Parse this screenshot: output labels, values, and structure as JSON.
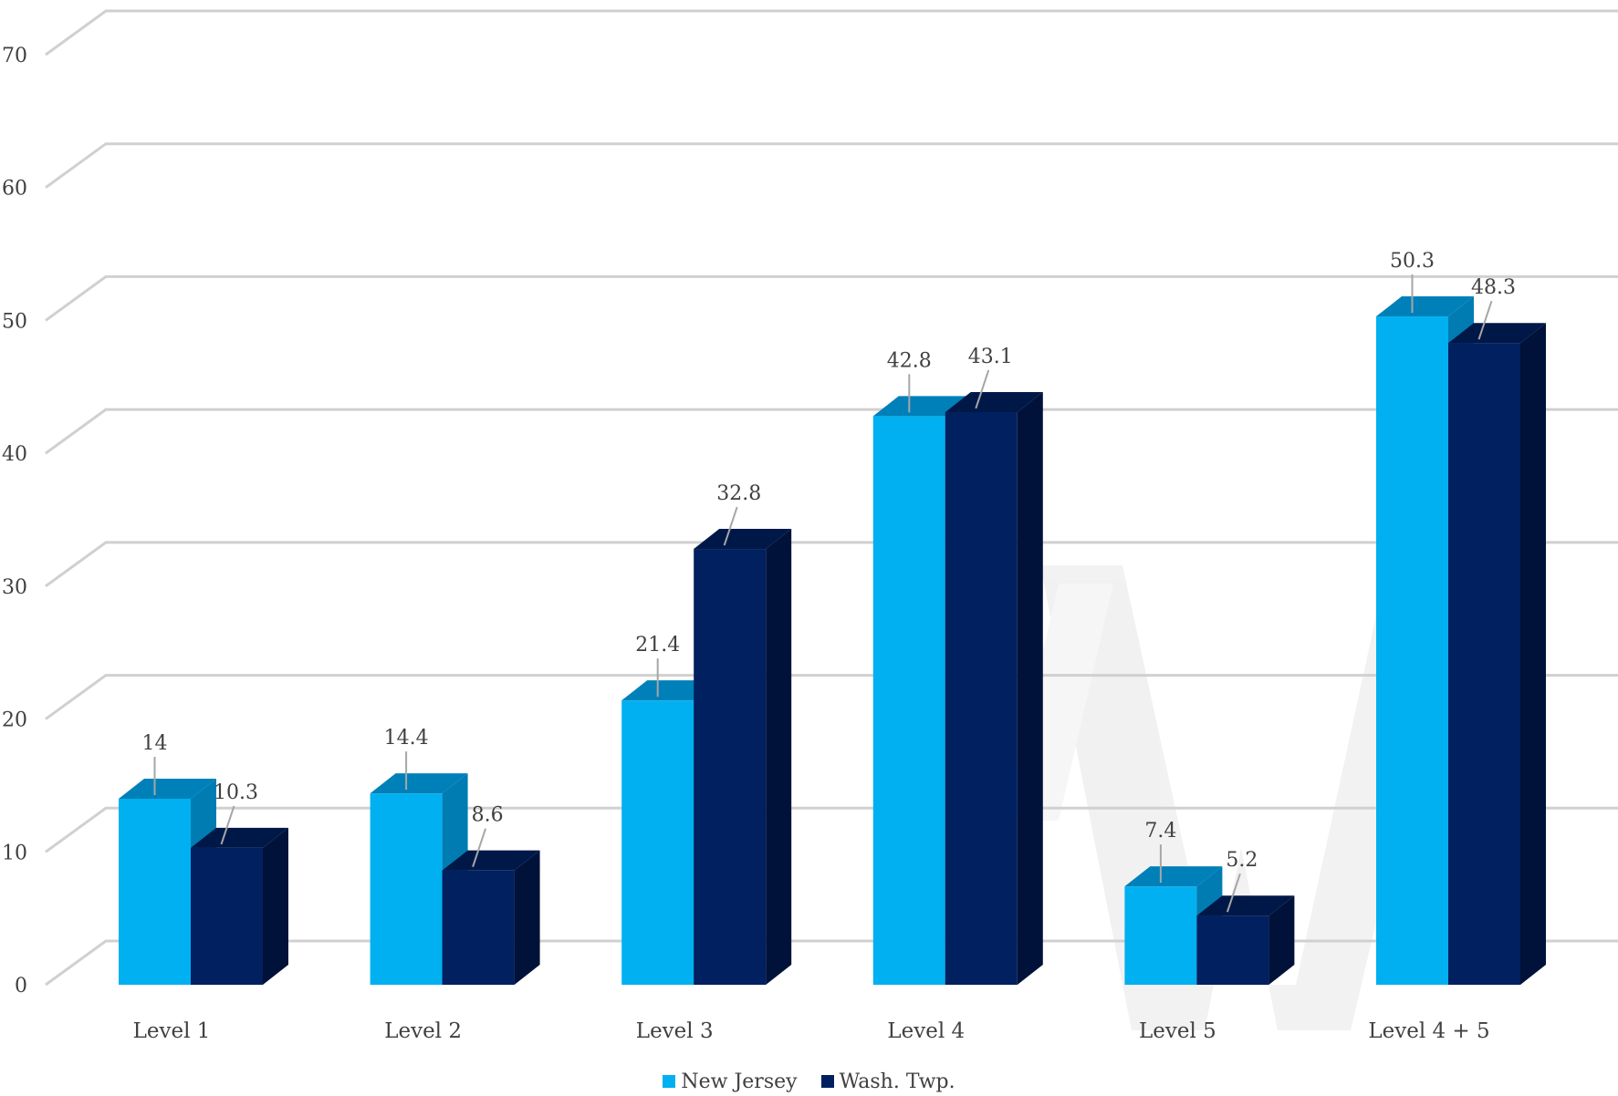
{
  "chart_data": {
    "type": "bar",
    "title": "",
    "xlabel": "",
    "ylabel": "",
    "ylim": [
      0,
      70
    ],
    "yticks": [
      0,
      10,
      20,
      30,
      40,
      50,
      60,
      70
    ],
    "categories": [
      "Level 1",
      "Level 2",
      "Level 3",
      "Level 4",
      "Level 5",
      "Level 4 + 5"
    ],
    "series": [
      {
        "name": "New Jersey",
        "values": [
          14,
          14.4,
          21.4,
          42.8,
          7.4,
          50.3
        ],
        "color": "#00b0f0"
      },
      {
        "name": "Wash. Twp.",
        "values": [
          10.3,
          8.6,
          32.8,
          43.1,
          5.2,
          48.3
        ],
        "color": "#002060"
      }
    ],
    "data_labels": [
      [
        "14",
        "14.4",
        "21.4",
        "42.8",
        "7.4",
        "50.3"
      ],
      [
        "10.3",
        "8.6",
        "32.8",
        "43.1",
        "5.2",
        "48.3"
      ]
    ],
    "grid": true,
    "three_d": true,
    "legend_position": "bottom"
  }
}
